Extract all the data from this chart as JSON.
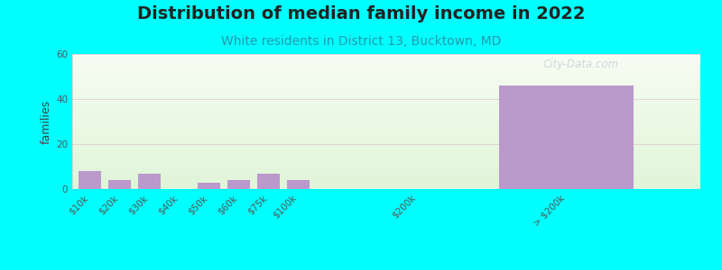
{
  "title": "Distribution of median family income in 2022",
  "subtitle": "White residents in District 13, Bucktown, MD",
  "ylabel": "families",
  "background_color": "#00FFFF",
  "bar_color": "#bb99cc",
  "categories": [
    "$10k",
    "$20k",
    "$30k",
    "$40k",
    "$50k",
    "$60k",
    "$75k",
    "$100k",
    "$200k",
    "> $200k"
  ],
  "values": [
    8,
    4,
    7,
    0,
    3,
    4,
    7,
    4,
    0,
    46
  ],
  "ylim": [
    0,
    60
  ],
  "yticks": [
    0,
    20,
    40,
    60
  ],
  "title_fontsize": 14,
  "subtitle_fontsize": 10,
  "watermark": "City-Data.com"
}
